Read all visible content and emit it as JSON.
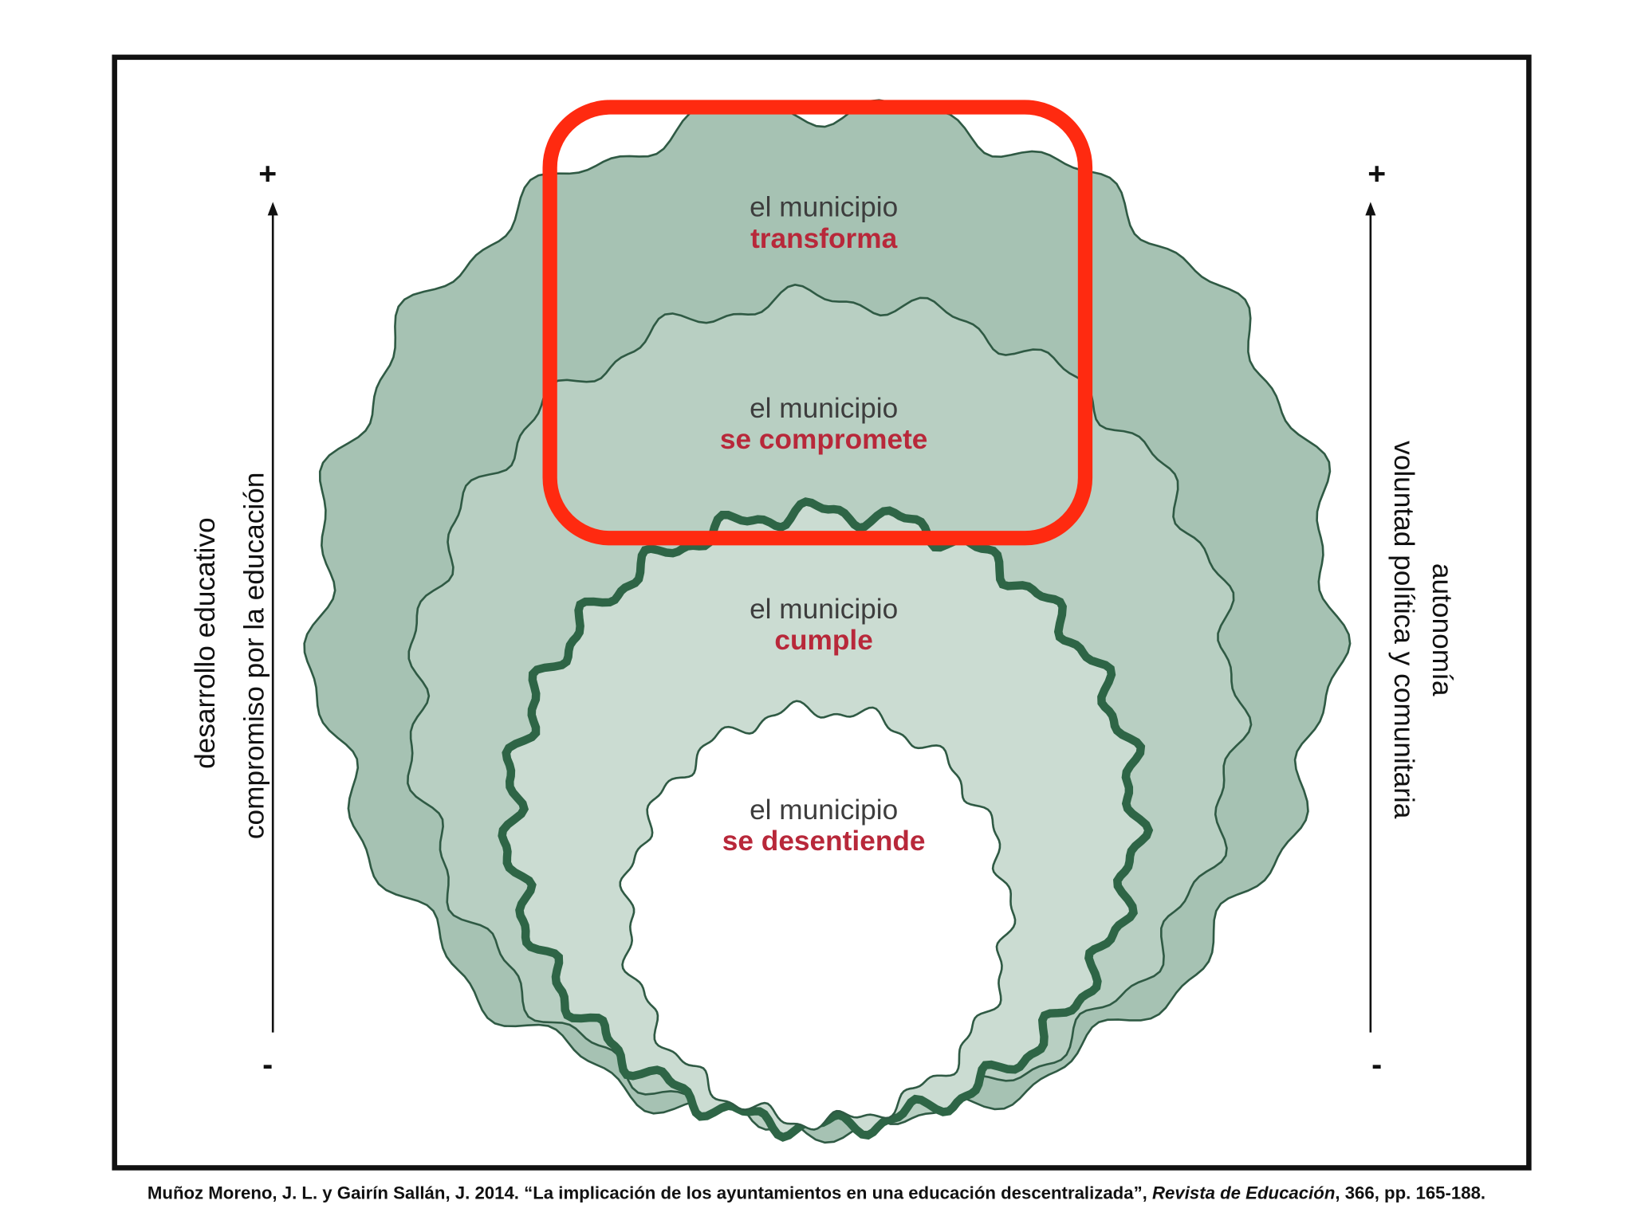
{
  "levels": [
    {
      "line1": "el municipio",
      "line2": "transforma"
    },
    {
      "line1": "el municipio",
      "line2": "se compromete"
    },
    {
      "line1": "el municipio",
      "line2": "cumple"
    },
    {
      "line1": "el municipio",
      "line2": "se desentiende"
    }
  ],
  "left_axis": {
    "plus": "+",
    "minus": "-",
    "labels": [
      "desarrollo educativo",
      "compromiso por la educación"
    ]
  },
  "right_axis": {
    "plus": "+",
    "minus": "-",
    "labels": [
      "autonomía",
      "voluntad política y comunitaria"
    ]
  },
  "citation": {
    "before": "Muñoz Moreno, J. L. y Gairín Sallán, J. 2014. “La implicación de los ayuntamientos en una educación descentralizada”, ",
    "journal": "Revista de Educación",
    "after": ", 366, pp. 165-188."
  }
}
